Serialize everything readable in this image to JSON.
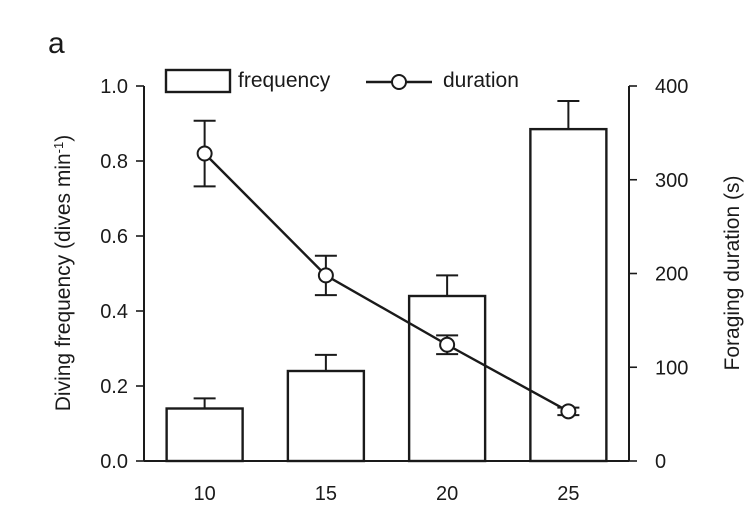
{
  "panel_label": "a",
  "chart_data": {
    "type": "bar",
    "categories": [
      "10",
      "15",
      "20",
      "25"
    ],
    "bar_series": {
      "name": "frequency",
      "values": [
        0.14,
        0.24,
        0.44,
        0.885
      ],
      "error": [
        0.027,
        0.043,
        0.055,
        0.075
      ]
    },
    "line_series": {
      "name": "duration",
      "values": [
        328,
        198,
        124,
        53
      ],
      "error": [
        35,
        21,
        10,
        4
      ]
    },
    "ylabel_left": "Diving frequency (dives min",
    "ylabel_left_sup": "-1",
    "ylabel_left_end": ")",
    "ylabel_right": "Foraging duration (s)",
    "ylim_left": [
      0,
      1.0
    ],
    "ylim_right": [
      0,
      400
    ],
    "yticks_left": [
      "0.0",
      "0.2",
      "0.4",
      "0.6",
      "0.8",
      "1.0"
    ],
    "yticks_right": [
      "0",
      "100",
      "200",
      "300",
      "400"
    ],
    "legend_position": "top",
    "grid": false
  }
}
